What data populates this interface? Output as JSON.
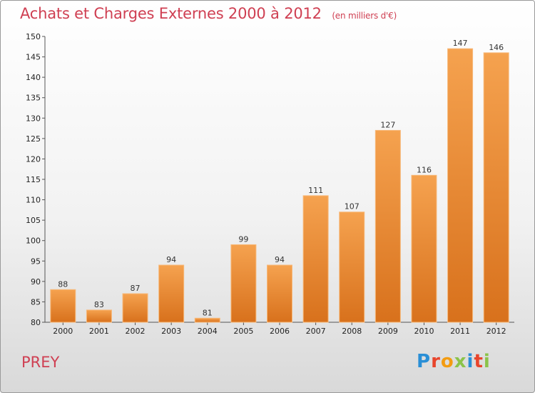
{
  "title": "Achats et Charges Externes 2000 à 2012",
  "subtitle": "(en milliers d'€)",
  "footer_label": "PREY",
  "logo": {
    "text": "Proxiti",
    "colors": [
      "#2a8fd6",
      "#e8452c",
      "#f39c12",
      "#8bc34a",
      "#2a8fd6",
      "#e8452c",
      "#8bc34a"
    ]
  },
  "colors": {
    "bar_top": "#f5a24f",
    "bar_bottom": "#d8711c",
    "title": "#cf3f52"
  },
  "chart_data": {
    "type": "bar",
    "categories": [
      "2000",
      "2001",
      "2002",
      "2003",
      "2004",
      "2005",
      "2006",
      "2007",
      "2008",
      "2009",
      "2010",
      "2011",
      "2012"
    ],
    "values": [
      88,
      83,
      87,
      94,
      81,
      99,
      94,
      111,
      107,
      127,
      116,
      147,
      146
    ],
    "title": "Achats et Charges Externes 2000 à 2012",
    "subtitle": "(en milliers d'€)",
    "xlabel": "",
    "ylabel": "",
    "ylim": [
      80,
      150
    ],
    "yticks": [
      80,
      85,
      90,
      95,
      100,
      105,
      110,
      115,
      120,
      125,
      130,
      135,
      140,
      145,
      150
    ],
    "grid": false,
    "data_labels": true
  }
}
